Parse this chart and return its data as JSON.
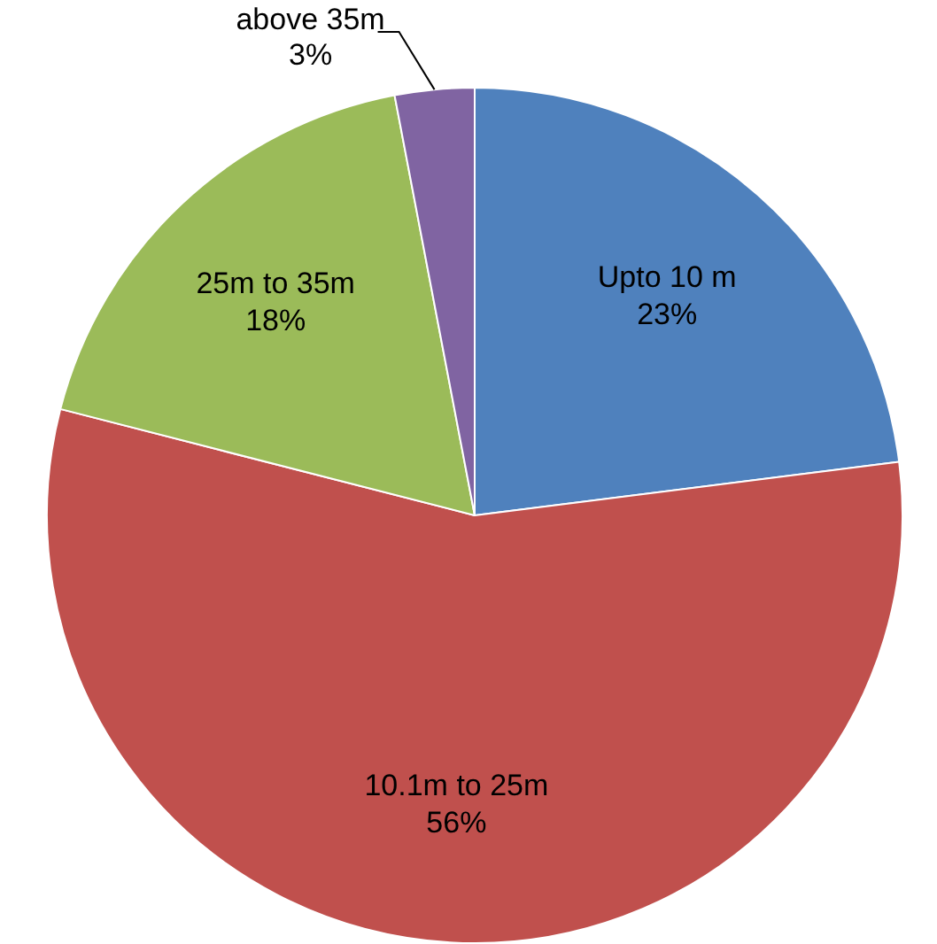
{
  "chart_data": {
    "type": "pie",
    "categories": [
      "Upto 10 m",
      "10.1m to 25m",
      "25m to 35m",
      "above 35m"
    ],
    "values": [
      23,
      56,
      18,
      3
    ],
    "colors": [
      "#4f81bd",
      "#c0504d",
      "#9bbb59",
      "#8064a2"
    ],
    "value_labels": [
      "23%",
      "56%",
      "18%",
      "3%"
    ],
    "legend": false
  }
}
